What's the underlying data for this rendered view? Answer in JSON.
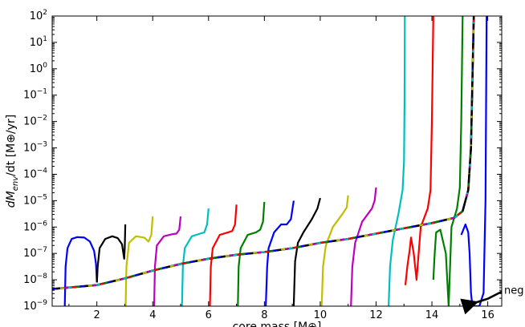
{
  "chart_data": {
    "type": "line",
    "xlabel": "core mass [M⊕]",
    "ylabel": "dM_env/dt [M⊕/yr]",
    "ylabel_parts": {
      "d": "dM",
      "sub": "env",
      "rest": "/dt [M⊕/yr]"
    },
    "xlim": [
      0.4,
      16.5
    ],
    "ylim_log10": [
      -9,
      2
    ],
    "xticks": [
      2,
      4,
      6,
      8,
      10,
      12,
      14,
      16
    ],
    "xtick_labels": [
      "2",
      "4",
      "6",
      "8",
      "10",
      "12",
      "14",
      "16"
    ],
    "yticks_exp": [
      -9,
      -8,
      -7,
      -6,
      -5,
      -4,
      -3,
      -2,
      -1,
      0,
      1,
      2
    ],
    "ytick_labels": [
      "10",
      "10",
      "10",
      "10",
      "10",
      "10",
      "10",
      "10",
      "10",
      "10",
      "10",
      "10"
    ],
    "ytick_exponents": [
      "−9",
      "−8",
      "−7",
      "−6",
      "−5",
      "−4",
      "−3",
      "−2",
      "−1",
      "0",
      "1",
      "2"
    ],
    "annotation": "neg",
    "colors": [
      "#0000ff",
      "#000000",
      "#bfbf00",
      "#bf00bf",
      "#00bfbf",
      "#ff0000",
      "#008000"
    ],
    "series": [
      {
        "name": "blue 1-2",
        "color": "#0000ff",
        "points": [
          [
            0.85,
            -9
          ],
          [
            0.88,
            -7.5
          ],
          [
            0.95,
            -6.8
          ],
          [
            1.1,
            -6.45
          ],
          [
            1.3,
            -6.38
          ],
          [
            1.55,
            -6.4
          ],
          [
            1.75,
            -6.55
          ],
          [
            1.9,
            -6.9
          ],
          [
            1.97,
            -7.4
          ],
          [
            2.0,
            -8.1
          ]
        ]
      },
      {
        "name": "black 2-3",
        "color": "#000000",
        "points": [
          [
            2.0,
            -8.1
          ],
          [
            2.03,
            -7.5
          ],
          [
            2.1,
            -6.8
          ],
          [
            2.3,
            -6.45
          ],
          [
            2.55,
            -6.35
          ],
          [
            2.75,
            -6.42
          ],
          [
            2.9,
            -6.65
          ],
          [
            2.98,
            -7.2
          ],
          [
            3.0,
            -6.8
          ],
          [
            3.02,
            -5.9
          ]
        ]
      },
      {
        "name": "yellow 3-4",
        "color": "#bfbf00",
        "points": [
          [
            3.03,
            -9
          ],
          [
            3.06,
            -7.5
          ],
          [
            3.15,
            -6.6
          ],
          [
            3.4,
            -6.35
          ],
          [
            3.7,
            -6.4
          ],
          [
            3.85,
            -6.55
          ],
          [
            3.95,
            -6.3
          ],
          [
            4.0,
            -5.6
          ]
        ]
      },
      {
        "name": "magenta 4-5",
        "color": "#bf00bf",
        "points": [
          [
            4.05,
            -9
          ],
          [
            4.08,
            -7.5
          ],
          [
            4.15,
            -6.7
          ],
          [
            4.4,
            -6.35
          ],
          [
            4.7,
            -6.27
          ],
          [
            4.85,
            -6.25
          ],
          [
            4.95,
            -6.1
          ],
          [
            5.0,
            -5.6
          ]
        ]
      },
      {
        "name": "cyan 5-6",
        "color": "#00bfbf",
        "points": [
          [
            5.05,
            -9
          ],
          [
            5.08,
            -7.5
          ],
          [
            5.15,
            -6.8
          ],
          [
            5.4,
            -6.35
          ],
          [
            5.7,
            -6.25
          ],
          [
            5.85,
            -6.2
          ],
          [
            5.95,
            -5.9
          ],
          [
            6.0,
            -5.3
          ]
        ]
      },
      {
        "name": "red 6-7",
        "color": "#ff0000",
        "points": [
          [
            6.05,
            -9
          ],
          [
            6.08,
            -7.5
          ],
          [
            6.15,
            -6.8
          ],
          [
            6.4,
            -6.3
          ],
          [
            6.7,
            -6.2
          ],
          [
            6.85,
            -6.15
          ],
          [
            6.95,
            -5.9
          ],
          [
            7.0,
            -5.15
          ]
        ]
      },
      {
        "name": "green 7-8",
        "color": "#008000",
        "points": [
          [
            7.05,
            -9
          ],
          [
            7.08,
            -7.5
          ],
          [
            7.15,
            -6.8
          ],
          [
            7.4,
            -6.3
          ],
          [
            7.7,
            -6.2
          ],
          [
            7.85,
            -6.1
          ],
          [
            7.95,
            -5.8
          ],
          [
            8.0,
            -5.05
          ]
        ]
      },
      {
        "name": "blue 8-9",
        "color": "#0000ff",
        "points": [
          [
            8.05,
            -9
          ],
          [
            8.1,
            -7.5
          ],
          [
            8.15,
            -6.8
          ],
          [
            8.35,
            -6.2
          ],
          [
            8.6,
            -5.9
          ],
          [
            8.8,
            -5.9
          ],
          [
            8.95,
            -5.7
          ],
          [
            9.05,
            -5.0
          ]
        ]
      },
      {
        "name": "black 9-10",
        "color": "#000000",
        "points": [
          [
            9.05,
            -9
          ],
          [
            9.1,
            -7.3
          ],
          [
            9.2,
            -6.6
          ],
          [
            9.4,
            -6.2
          ],
          [
            9.7,
            -5.7
          ],
          [
            9.9,
            -5.3
          ],
          [
            10.0,
            -4.9
          ]
        ]
      },
      {
        "name": "yellow 10-11",
        "color": "#bfbf00",
        "points": [
          [
            10.05,
            -9
          ],
          [
            10.1,
            -7.5
          ],
          [
            10.2,
            -6.7
          ],
          [
            10.45,
            -6.0
          ],
          [
            10.8,
            -5.5
          ],
          [
            10.95,
            -5.25
          ],
          [
            11.0,
            -4.8
          ]
        ]
      },
      {
        "name": "magenta 11-12",
        "color": "#bf00bf",
        "points": [
          [
            11.1,
            -9
          ],
          [
            11.15,
            -7.5
          ],
          [
            11.25,
            -6.6
          ],
          [
            11.5,
            -5.8
          ],
          [
            11.85,
            -5.3
          ],
          [
            11.95,
            -5.0
          ],
          [
            12.0,
            -4.5
          ]
        ]
      },
      {
        "name": "cyan 12-13",
        "color": "#00bfbf",
        "points": [
          [
            12.45,
            -9
          ],
          [
            12.5,
            -7.5
          ],
          [
            12.6,
            -6.5
          ],
          [
            12.8,
            -5.5
          ],
          [
            12.95,
            -4.6
          ],
          [
            13.0,
            -3.5
          ],
          [
            13.02,
            -1.0
          ],
          [
            13.03,
            2.0
          ]
        ]
      },
      {
        "name": "red 13-14",
        "color": "#ff0000",
        "points": [
          [
            13.05,
            -8.2
          ],
          [
            13.12,
            -7.5
          ],
          [
            13.2,
            -6.9
          ],
          [
            13.25,
            -6.4
          ],
          [
            13.35,
            -7.0
          ],
          [
            13.45,
            -8.0
          ],
          [
            13.6,
            -6.0
          ],
          [
            13.85,
            -5.3
          ],
          [
            13.95,
            -4.6
          ],
          [
            14.0,
            -2.0
          ],
          [
            14.05,
            2.0
          ]
        ]
      },
      {
        "name": "green 14-15",
        "color": "#008000",
        "points": [
          [
            14.05,
            -8.0
          ],
          [
            14.1,
            -7.0
          ],
          [
            14.15,
            -6.2
          ],
          [
            14.3,
            -6.1
          ],
          [
            14.5,
            -7.0
          ],
          [
            14.6,
            -9.0
          ],
          [
            14.7,
            -6.0
          ],
          [
            14.9,
            -5.3
          ],
          [
            15.0,
            -4.5
          ],
          [
            15.05,
            -2.0
          ],
          [
            15.1,
            2.0
          ]
        ]
      },
      {
        "name": "blue 15-16",
        "color": "#0000ff",
        "points": [
          [
            15.05,
            -6.3
          ],
          [
            15.2,
            -5.9
          ],
          [
            15.3,
            -6.2
          ],
          [
            15.35,
            -7.0
          ],
          [
            15.4,
            -8.5
          ],
          [
            15.45,
            -9.0
          ],
          [
            15.7,
            -9.0
          ],
          [
            15.85,
            -8.5
          ],
          [
            15.92,
            -5.0
          ],
          [
            15.96,
            2.0
          ]
        ]
      },
      {
        "name": "baseline",
        "color": "#000000",
        "dashed": false,
        "points": [
          [
            0.4,
            -8.35
          ],
          [
            2.0,
            -8.2
          ],
          [
            3.0,
            -7.95
          ],
          [
            4.0,
            -7.65
          ],
          [
            5.0,
            -7.4
          ],
          [
            6.0,
            -7.2
          ],
          [
            7.0,
            -7.05
          ],
          [
            8.0,
            -6.95
          ],
          [
            9.0,
            -6.8
          ],
          [
            10.0,
            -6.6
          ],
          [
            11.0,
            -6.45
          ],
          [
            12.0,
            -6.25
          ],
          [
            13.0,
            -6.05
          ],
          [
            14.0,
            -5.85
          ],
          [
            14.8,
            -5.65
          ],
          [
            15.1,
            -5.4
          ],
          [
            15.3,
            -4.6
          ],
          [
            15.4,
            -3.0
          ],
          [
            15.5,
            2.0
          ]
        ]
      }
    ],
    "neg_line": {
      "color": "#000000",
      "points": [
        [
          15.6,
          -8.85
        ],
        [
          16.0,
          -8.72
        ],
        [
          16.5,
          -8.45
        ]
      ]
    }
  }
}
